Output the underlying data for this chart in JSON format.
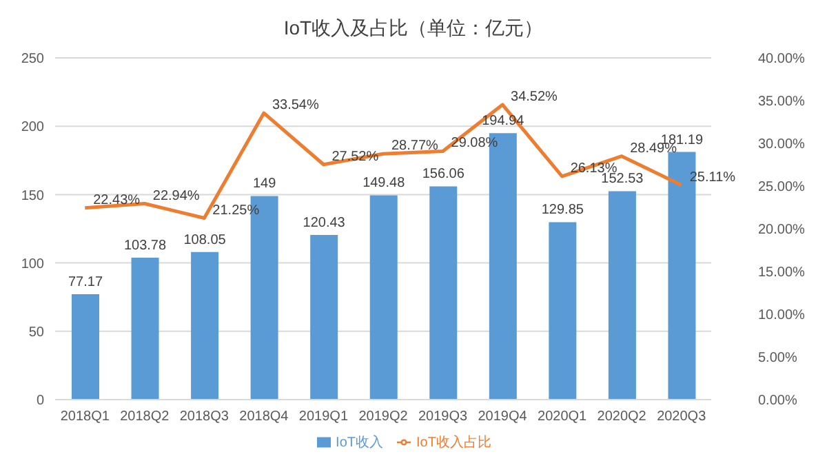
{
  "chart_data": {
    "type": "bar",
    "title": "IoT收入及占比（单位：亿元）",
    "categories": [
      "2018Q1",
      "2018Q2",
      "2018Q3",
      "2018Q4",
      "2019Q1",
      "2019Q2",
      "2019Q3",
      "2019Q4",
      "2020Q1",
      "2020Q2",
      "2020Q3"
    ],
    "series": [
      {
        "name": "IoT收入",
        "color": "#5b9bd5",
        "values": [
          77.17,
          103.78,
          108.05,
          149,
          120.43,
          149.48,
          156.06,
          194.94,
          129.85,
          152.53,
          181.19
        ],
        "value_labels": [
          "77.17",
          "103.78",
          "108.05",
          "149",
          "120.43",
          "149.48",
          "156.06",
          "194.94",
          "129.85",
          "152.53",
          "181.19"
        ]
      },
      {
        "name": "IoT收入占比",
        "type": "line",
        "axis": "y2",
        "color": "#ed7d31",
        "marker": "none",
        "values": [
          22.43,
          22.94,
          21.25,
          33.54,
          27.52,
          28.77,
          29.08,
          34.52,
          26.13,
          28.49,
          25.11
        ],
        "value_labels": [
          "22.43%",
          "22.94%",
          "21.25%",
          "33.54%",
          "27.52%",
          "28.77%",
          "29.08%",
          "34.52%",
          "26.13%",
          "28.49%",
          "25.11%"
        ]
      }
    ],
    "ylim": [
      0,
      250
    ],
    "yticks": [
      0,
      50,
      100,
      150,
      200,
      250
    ],
    "y2lim": [
      0,
      40
    ],
    "y2ticks": [
      {
        "value": 0,
        "label": "0.00%"
      },
      {
        "value": 5,
        "label": "5.00%"
      },
      {
        "value": 10,
        "label": "10.00%"
      },
      {
        "value": 15,
        "label": "15.00%"
      },
      {
        "value": 20,
        "label": "20.00%"
      },
      {
        "value": 25,
        "label": "25.00%"
      },
      {
        "value": 30,
        "label": "30.00%"
      },
      {
        "value": 35,
        "label": "35.00%"
      },
      {
        "value": 40,
        "label": "40.00%"
      }
    ],
    "grid": "y",
    "legend": "bottom"
  }
}
